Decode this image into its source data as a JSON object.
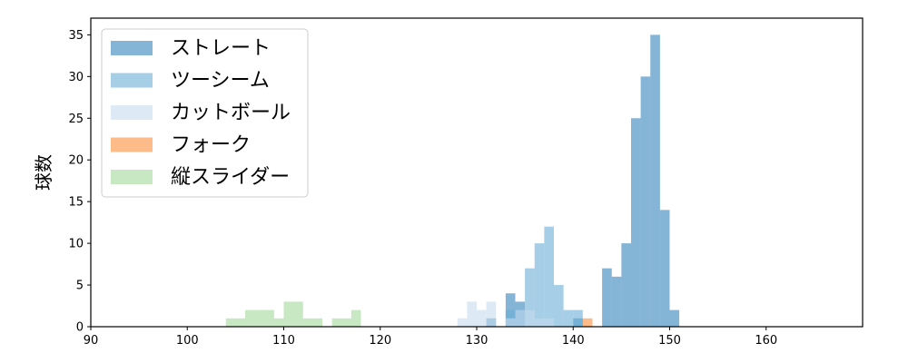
{
  "chart_data": {
    "type": "histogram",
    "title": "",
    "xlabel": "",
    "ylabel": "球数",
    "xlim": [
      90,
      170
    ],
    "ylim": [
      0,
      37
    ],
    "xticks": [
      90,
      100,
      110,
      120,
      130,
      140,
      150,
      160
    ],
    "yticks": [
      0,
      5,
      10,
      15,
      20,
      25,
      30,
      35
    ],
    "legend_position": "top-left",
    "grid": false,
    "series": [
      {
        "name": "ストレート",
        "color": "#1f77b4",
        "alpha": 0.55,
        "bins": [
          {
            "x0": 131,
            "x1": 132,
            "count": 1
          },
          {
            "x0": 133,
            "x1": 134,
            "count": 4
          },
          {
            "x0": 134,
            "x1": 135,
            "count": 3
          },
          {
            "x0": 140,
            "x1": 141,
            "count": 1
          },
          {
            "x0": 143,
            "x1": 144,
            "count": 7
          },
          {
            "x0": 144,
            "x1": 145,
            "count": 6
          },
          {
            "x0": 145,
            "x1": 146,
            "count": 10
          },
          {
            "x0": 146,
            "x1": 147,
            "count": 25
          },
          {
            "x0": 147,
            "x1": 148,
            "count": 30
          },
          {
            "x0": 148,
            "x1": 149,
            "count": 35
          },
          {
            "x0": 149,
            "x1": 150,
            "count": 14
          },
          {
            "x0": 150,
            "x1": 151,
            "count": 2
          }
        ]
      },
      {
        "name": "ツーシーム",
        "color": "#6baed6",
        "alpha": 0.6,
        "bins": [
          {
            "x0": 133,
            "x1": 134,
            "count": 2
          },
          {
            "x0": 134,
            "x1": 135,
            "count": 2
          },
          {
            "x0": 135,
            "x1": 136,
            "count": 7
          },
          {
            "x0": 136,
            "x1": 137,
            "count": 10
          },
          {
            "x0": 137,
            "x1": 138,
            "count": 12
          },
          {
            "x0": 138,
            "x1": 139,
            "count": 5
          },
          {
            "x0": 139,
            "x1": 140,
            "count": 2
          },
          {
            "x0": 140,
            "x1": 141,
            "count": 2
          }
        ]
      },
      {
        "name": "カットボール",
        "color": "#c6dbef",
        "alpha": 0.6,
        "bins": [
          {
            "x0": 128,
            "x1": 129,
            "count": 1
          },
          {
            "x0": 129,
            "x1": 130,
            "count": 3
          },
          {
            "x0": 130,
            "x1": 131,
            "count": 2
          },
          {
            "x0": 131,
            "x1": 132,
            "count": 3
          },
          {
            "x0": 133,
            "x1": 134,
            "count": 1
          },
          {
            "x0": 134,
            "x1": 135,
            "count": 2
          },
          {
            "x0": 135,
            "x1": 136,
            "count": 2
          },
          {
            "x0": 136,
            "x1": 137,
            "count": 1
          },
          {
            "x0": 137,
            "x1": 138,
            "count": 1
          }
        ]
      },
      {
        "name": "フォーク",
        "color": "#fd8d3c",
        "alpha": 0.6,
        "bins": [
          {
            "x0": 141,
            "x1": 142,
            "count": 1
          }
        ]
      },
      {
        "name": "縦スライダー",
        "color": "#a1d99b",
        "alpha": 0.6,
        "bins": [
          {
            "x0": 104,
            "x1": 106,
            "count": 1
          },
          {
            "x0": 106,
            "x1": 109,
            "count": 2
          },
          {
            "x0": 109,
            "x1": 110,
            "count": 1
          },
          {
            "x0": 110,
            "x1": 112,
            "count": 3
          },
          {
            "x0": 112,
            "x1": 114,
            "count": 1
          },
          {
            "x0": 115,
            "x1": 117,
            "count": 1
          },
          {
            "x0": 117,
            "x1": 118,
            "count": 2
          }
        ]
      }
    ]
  }
}
